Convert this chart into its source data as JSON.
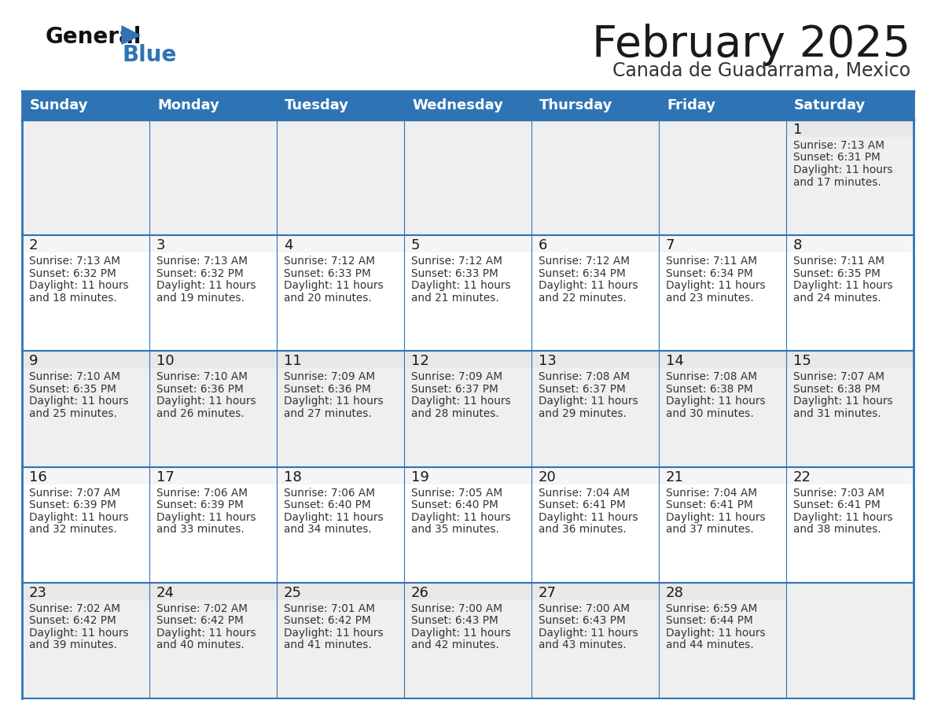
{
  "title": "February 2025",
  "subtitle": "Canada de Guadarrama, Mexico",
  "header_bg": "#2E74B5",
  "header_text_color": "#FFFFFF",
  "cell_bg_light": "#EFEFEF",
  "cell_bg_white": "#FFFFFF",
  "day_num_bg_light": "#E8E8E8",
  "day_num_bg_white": "#F5F5F5",
  "border_color": "#2E74B5",
  "day_names": [
    "Sunday",
    "Monday",
    "Tuesday",
    "Wednesday",
    "Thursday",
    "Friday",
    "Saturday"
  ],
  "title_color": "#1a1a1a",
  "subtitle_color": "#333333",
  "text_color": "#333333",
  "day_num_color": "#1a1a1a",
  "calendar": [
    [
      null,
      null,
      null,
      null,
      null,
      null,
      1
    ],
    [
      2,
      3,
      4,
      5,
      6,
      7,
      8
    ],
    [
      9,
      10,
      11,
      12,
      13,
      14,
      15
    ],
    [
      16,
      17,
      18,
      19,
      20,
      21,
      22
    ],
    [
      23,
      24,
      25,
      26,
      27,
      28,
      null
    ]
  ],
  "sun_data": {
    "1": {
      "rise": "7:13 AM",
      "set": "6:31 PM",
      "dl1": "Daylight: 11 hours",
      "dl2": "and 17 minutes."
    },
    "2": {
      "rise": "7:13 AM",
      "set": "6:32 PM",
      "dl1": "Daylight: 11 hours",
      "dl2": "and 18 minutes."
    },
    "3": {
      "rise": "7:13 AM",
      "set": "6:32 PM",
      "dl1": "Daylight: 11 hours",
      "dl2": "and 19 minutes."
    },
    "4": {
      "rise": "7:12 AM",
      "set": "6:33 PM",
      "dl1": "Daylight: 11 hours",
      "dl2": "and 20 minutes."
    },
    "5": {
      "rise": "7:12 AM",
      "set": "6:33 PM",
      "dl1": "Daylight: 11 hours",
      "dl2": "and 21 minutes."
    },
    "6": {
      "rise": "7:12 AM",
      "set": "6:34 PM",
      "dl1": "Daylight: 11 hours",
      "dl2": "and 22 minutes."
    },
    "7": {
      "rise": "7:11 AM",
      "set": "6:34 PM",
      "dl1": "Daylight: 11 hours",
      "dl2": "and 23 minutes."
    },
    "8": {
      "rise": "7:11 AM",
      "set": "6:35 PM",
      "dl1": "Daylight: 11 hours",
      "dl2": "and 24 minutes."
    },
    "9": {
      "rise": "7:10 AM",
      "set": "6:35 PM",
      "dl1": "Daylight: 11 hours",
      "dl2": "and 25 minutes."
    },
    "10": {
      "rise": "7:10 AM",
      "set": "6:36 PM",
      "dl1": "Daylight: 11 hours",
      "dl2": "and 26 minutes."
    },
    "11": {
      "rise": "7:09 AM",
      "set": "6:36 PM",
      "dl1": "Daylight: 11 hours",
      "dl2": "and 27 minutes."
    },
    "12": {
      "rise": "7:09 AM",
      "set": "6:37 PM",
      "dl1": "Daylight: 11 hours",
      "dl2": "and 28 minutes."
    },
    "13": {
      "rise": "7:08 AM",
      "set": "6:37 PM",
      "dl1": "Daylight: 11 hours",
      "dl2": "and 29 minutes."
    },
    "14": {
      "rise": "7:08 AM",
      "set": "6:38 PM",
      "dl1": "Daylight: 11 hours",
      "dl2": "and 30 minutes."
    },
    "15": {
      "rise": "7:07 AM",
      "set": "6:38 PM",
      "dl1": "Daylight: 11 hours",
      "dl2": "and 31 minutes."
    },
    "16": {
      "rise": "7:07 AM",
      "set": "6:39 PM",
      "dl1": "Daylight: 11 hours",
      "dl2": "and 32 minutes."
    },
    "17": {
      "rise": "7:06 AM",
      "set": "6:39 PM",
      "dl1": "Daylight: 11 hours",
      "dl2": "and 33 minutes."
    },
    "18": {
      "rise": "7:06 AM",
      "set": "6:40 PM",
      "dl1": "Daylight: 11 hours",
      "dl2": "and 34 minutes."
    },
    "19": {
      "rise": "7:05 AM",
      "set": "6:40 PM",
      "dl1": "Daylight: 11 hours",
      "dl2": "and 35 minutes."
    },
    "20": {
      "rise": "7:04 AM",
      "set": "6:41 PM",
      "dl1": "Daylight: 11 hours",
      "dl2": "and 36 minutes."
    },
    "21": {
      "rise": "7:04 AM",
      "set": "6:41 PM",
      "dl1": "Daylight: 11 hours",
      "dl2": "and 37 minutes."
    },
    "22": {
      "rise": "7:03 AM",
      "set": "6:41 PM",
      "dl1": "Daylight: 11 hours",
      "dl2": "and 38 minutes."
    },
    "23": {
      "rise": "7:02 AM",
      "set": "6:42 PM",
      "dl1": "Daylight: 11 hours",
      "dl2": "and 39 minutes."
    },
    "24": {
      "rise": "7:02 AM",
      "set": "6:42 PM",
      "dl1": "Daylight: 11 hours",
      "dl2": "and 40 minutes."
    },
    "25": {
      "rise": "7:01 AM",
      "set": "6:42 PM",
      "dl1": "Daylight: 11 hours",
      "dl2": "and 41 minutes."
    },
    "26": {
      "rise": "7:00 AM",
      "set": "6:43 PM",
      "dl1": "Daylight: 11 hours",
      "dl2": "and 42 minutes."
    },
    "27": {
      "rise": "7:00 AM",
      "set": "6:43 PM",
      "dl1": "Daylight: 11 hours",
      "dl2": "and 43 minutes."
    },
    "28": {
      "rise": "6:59 AM",
      "set": "6:44 PM",
      "dl1": "Daylight: 11 hours",
      "dl2": "and 44 minutes."
    }
  }
}
